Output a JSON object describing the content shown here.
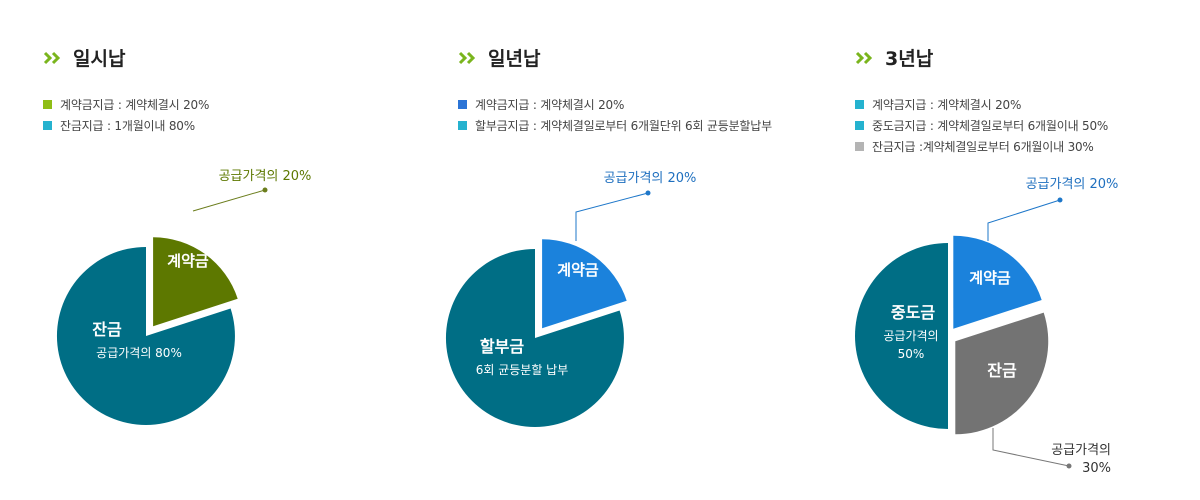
{
  "colors": {
    "chevron": "#7ab51d",
    "teal": "#006e85",
    "olive": "#5d7800",
    "blue": "#1b82dc",
    "gray": "#737373",
    "legend_lime": "#8fbe16",
    "legend_cyan": "#25b2cf",
    "legend_blue": "#2b74d6",
    "legend_gray": "#b4b4b4",
    "leader_olive": "#6b7d1c",
    "leader_blue": "#1e77c9",
    "leader_gray": "#777777",
    "callout_olive": "#5d7800",
    "callout_blue": "#1e6fbf",
    "callout_gray": "#333333"
  },
  "panels": [
    {
      "title": "일시납",
      "icon": "double-chevron-right-icon",
      "legend": [
        {
          "text": "계약금지급 : 계약체결시 20%",
          "color": "#8fbe16"
        },
        {
          "text": "잔금지급 : 1개월이내 80%",
          "color": "#25b2cf"
        }
      ]
    },
    {
      "title": "일년납",
      "icon": "double-chevron-right-icon",
      "legend": [
        {
          "text": "계약금지급 : 계약체결시 20%",
          "color": "#2b74d6"
        },
        {
          "text": "할부금지급 : 계약체결일로부터 6개월단위 6회 균등분할납부",
          "color": "#25b2cf"
        }
      ]
    },
    {
      "title": "3년납",
      "icon": "double-chevron-right-icon",
      "legend": [
        {
          "text": "계약금지급 : 계약체결시 20%",
          "color": "#25b2cf"
        },
        {
          "text": "중도금지급 : 계약체결일로부터 6개월이내 50%",
          "color": "#25b2cf"
        },
        {
          "text": "잔금지급 :계약체결일로부터 6개월이내 30%",
          "color": "#b4b4b4"
        }
      ]
    }
  ],
  "chart_data": [
    {
      "type": "pie",
      "title": "일시납",
      "slices": [
        {
          "label": "계약금",
          "value": 20,
          "sublabel": "",
          "callout": "공급가격의 20%",
          "color": "#5d7800",
          "exploded": true
        },
        {
          "label": "잔금",
          "value": 80,
          "sublabel": "공급가격의 80%",
          "callout": "",
          "color": "#006e85",
          "exploded": false
        }
      ]
    },
    {
      "type": "pie",
      "title": "일년납",
      "slices": [
        {
          "label": "계약금",
          "value": 20,
          "sublabel": "",
          "callout": "공급가격의 20%",
          "color": "#1b82dc",
          "exploded": true
        },
        {
          "label": "할부금",
          "value": 80,
          "sublabel": "6회 균등분할 납부",
          "callout": "",
          "color": "#006e85",
          "exploded": false
        }
      ]
    },
    {
      "type": "pie",
      "title": "3년납",
      "slices": [
        {
          "label": "계약금",
          "value": 20,
          "sublabel": "",
          "callout": "공급가격의 20%",
          "color": "#1b82dc",
          "exploded": true
        },
        {
          "label": "잔금",
          "value": 30,
          "sublabel": "",
          "callout_lines": [
            "공급가격의",
            "30%"
          ],
          "color": "#737373",
          "exploded": true
        },
        {
          "label": "중도금",
          "value": 50,
          "sublabel_lines": [
            "공급가격의",
            "50%"
          ],
          "callout": "",
          "color": "#006e85",
          "exploded": false
        }
      ]
    }
  ]
}
